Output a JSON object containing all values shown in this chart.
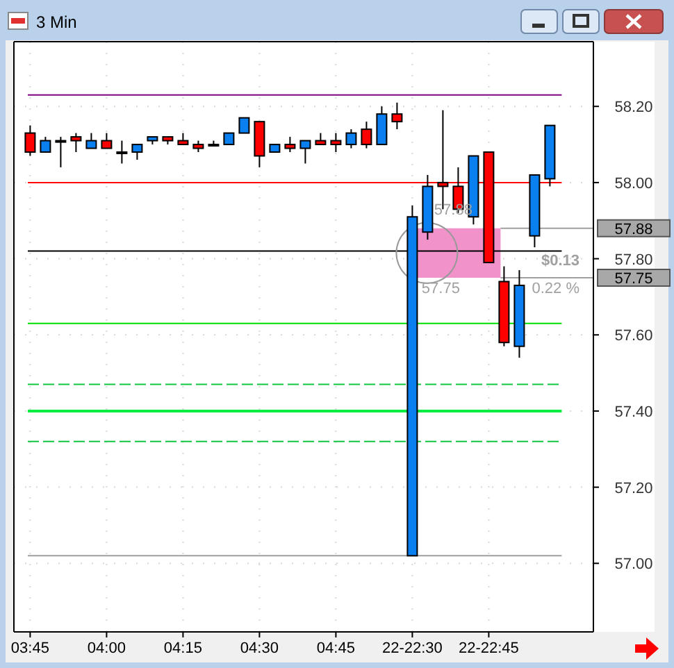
{
  "chart_data": {
    "type": "candlestick",
    "title": "3 Min",
    "categories": [
      "03:45",
      null,
      null,
      null,
      null,
      "04:00",
      null,
      null,
      null,
      null,
      "04:15",
      null,
      null,
      null,
      null,
      "04:30",
      null,
      null,
      null,
      null,
      "04:45",
      null,
      null,
      null,
      null,
      "22-22:30",
      null,
      null,
      null,
      null,
      "22-22:45",
      null,
      null,
      null,
      null
    ],
    "ohlc": [
      [
        58.13,
        58.15,
        58.07,
        58.08
      ],
      [
        58.08,
        58.12,
        58.08,
        58.11
      ],
      [
        58.11,
        58.12,
        58.04,
        58.11
      ],
      [
        58.12,
        58.13,
        58.08,
        58.11
      ],
      [
        58.09,
        58.13,
        58.09,
        58.11
      ],
      [
        58.11,
        58.13,
        58.09,
        58.09
      ],
      [
        58.08,
        58.11,
        58.05,
        58.08
      ],
      [
        58.08,
        58.1,
        58.06,
        58.1
      ],
      [
        58.11,
        58.12,
        58.1,
        58.12
      ],
      [
        58.12,
        58.12,
        58.1,
        58.11
      ],
      [
        58.11,
        58.13,
        58.1,
        58.1
      ],
      [
        58.1,
        58.11,
        58.08,
        58.09
      ],
      [
        58.1,
        58.11,
        58.1,
        58.1
      ],
      [
        58.1,
        58.13,
        58.1,
        58.13
      ],
      [
        58.13,
        58.17,
        58.13,
        58.17
      ],
      [
        58.16,
        58.16,
        58.04,
        58.07
      ],
      [
        58.08,
        58.1,
        58.08,
        58.1
      ],
      [
        58.1,
        58.12,
        58.08,
        58.09
      ],
      [
        58.09,
        58.11,
        58.05,
        58.11
      ],
      [
        58.11,
        58.13,
        58.1,
        58.1
      ],
      [
        58.11,
        58.13,
        58.08,
        58.1
      ],
      [
        58.1,
        58.14,
        58.09,
        58.13
      ],
      [
        58.14,
        58.16,
        58.09,
        58.1
      ],
      [
        58.1,
        58.2,
        58.1,
        58.18
      ],
      [
        58.18,
        58.21,
        58.14,
        58.16
      ],
      [
        57.02,
        57.94,
        57.02,
        57.91
      ],
      [
        57.87,
        58.02,
        57.85,
        57.99
      ],
      [
        58,
        58.19,
        57.93,
        57.99
      ],
      [
        57.99,
        58.04,
        57.92,
        57.93
      ],
      [
        57.91,
        58.07,
        57.89,
        58.07
      ],
      [
        58.08,
        58.08,
        57.79,
        57.79
      ],
      [
        57.74,
        57.78,
        57.57,
        57.58
      ],
      [
        57.57,
        57.77,
        57.54,
        57.73
      ],
      [
        57.86,
        58.02,
        57.83,
        58.02
      ],
      [
        58.01,
        58.15,
        57.99,
        58.15
      ]
    ],
    "colors": [
      "#ff0000",
      "#0a7ff0",
      "#000000",
      "#ff0000",
      "#0a7ff0",
      "#ff0000",
      "#000000",
      "#0a7ff0",
      "#0a7ff0",
      "#ff0000",
      "#ff0000",
      "#ff0000",
      "#000000",
      "#0a7ff0",
      "#0a7ff0",
      "#ff0000",
      "#0a7ff0",
      "#ff0000",
      "#0a7ff0",
      "#ff0000",
      "#ff0000",
      "#0a7ff0",
      "#ff0000",
      "#0a7ff0",
      "#ff0000",
      "#0a7ff0",
      "#0a7ff0",
      "#ff0000",
      "#ff0000",
      "#0a7ff0",
      "#ff0000",
      "#ff0000",
      "#0a7ff0",
      "#0a7ff0",
      "#0a7ff0"
    ],
    "ylim": [
      56.82,
      58.37
    ],
    "yticks": [
      {
        "value": 57,
        "label": "57.00"
      },
      {
        "value": 57.2,
        "label": "57.20"
      },
      {
        "value": 57.4,
        "label": "57.40"
      },
      {
        "value": 57.6,
        "label": "57.60"
      },
      {
        "value": 57.8,
        "label": "57.80"
      },
      {
        "value": 58,
        "label": "58.00"
      },
      {
        "value": 58.2,
        "label": "58.20"
      }
    ],
    "grid": true,
    "ref_lines": [
      {
        "axis": "y",
        "value": 58.23,
        "color": "#800080"
      },
      {
        "axis": "y",
        "value": 58.0,
        "color": "#ff0000"
      },
      {
        "axis": "y",
        "value": 57.82,
        "color": "#000000"
      },
      {
        "axis": "y",
        "value": 57.88,
        "label": "57.88",
        "color": "#a0a0a0"
      },
      {
        "axis": "y",
        "value": 57.75,
        "label": "57.75",
        "color": "#a0a0a0"
      },
      {
        "axis": "y",
        "value": 57.63,
        "color": "#00e000"
      },
      {
        "axis": "y",
        "value": 57.47,
        "color": "#10c840",
        "line_style": "dashed"
      },
      {
        "axis": "y",
        "value": 57.4,
        "color": "#00ee44"
      },
      {
        "axis": "y",
        "value": 57.32,
        "color": "#10c840",
        "line_style": "dashed"
      },
      {
        "axis": "y",
        "value": 57.02,
        "color": "#a0a0a0"
      }
    ],
    "bands": [
      {
        "axis": "y",
        "from": 57.75,
        "to": 57.88,
        "color": "#f08cc8"
      }
    ],
    "annotations": [
      {
        "text": "57.88",
        "y": 57.88
      },
      {
        "text": "57.75",
        "y": 57.75
      },
      "$0.13",
      "0.22 %"
    ]
  }
}
